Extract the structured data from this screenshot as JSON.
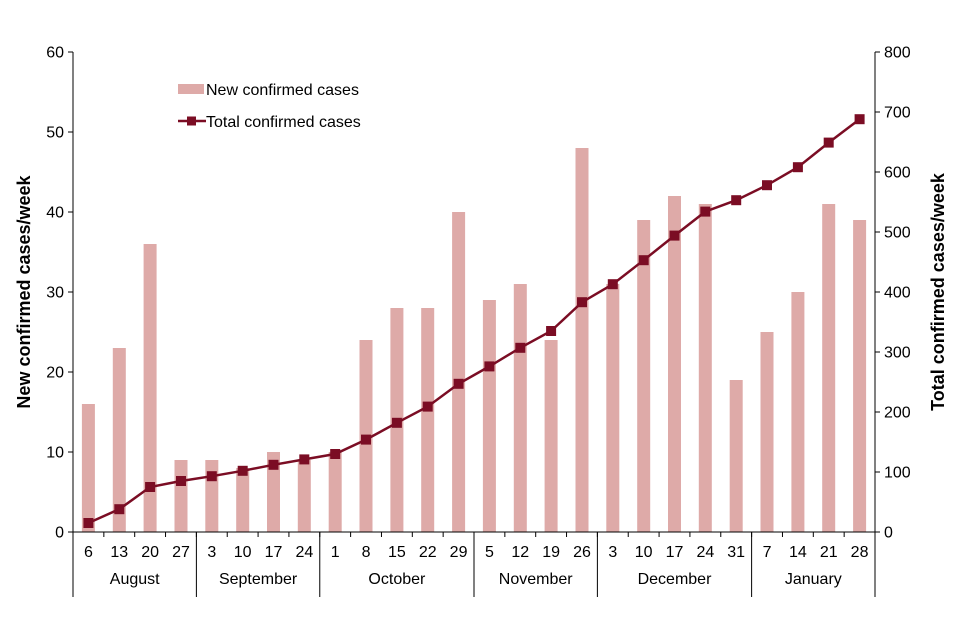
{
  "chart_data": {
    "type": "bar+line",
    "title": "",
    "x_dates": [
      "6",
      "13",
      "20",
      "27",
      "3",
      "10",
      "17",
      "24",
      "1",
      "8",
      "15",
      "22",
      "29",
      "5",
      "12",
      "19",
      "26",
      "3",
      "10",
      "17",
      "24",
      "31",
      "7",
      "14",
      "21",
      "28"
    ],
    "month_groups": [
      {
        "label": "August",
        "count": 4
      },
      {
        "label": "September",
        "count": 4
      },
      {
        "label": "October",
        "count": 5
      },
      {
        "label": "November",
        "count": 4
      },
      {
        "label": "December",
        "count": 5
      },
      {
        "label": "January",
        "count": 4
      }
    ],
    "series": [
      {
        "name": "New confirmed cases",
        "type": "bar",
        "axis": "left",
        "color": "#deaaa8",
        "values": [
          16,
          23,
          36,
          9,
          9,
          8,
          10,
          9,
          10,
          24,
          28,
          28,
          40,
          29,
          31,
          24,
          48,
          31,
          39,
          42,
          41,
          19,
          25,
          30,
          41,
          39
        ]
      },
      {
        "name": "Total confirmed cases",
        "type": "line",
        "axis": "right",
        "color": "#7b0d24",
        "values": [
          15,
          38,
          75,
          85,
          93,
          102,
          112,
          121,
          130,
          154,
          182,
          209,
          247,
          276,
          307,
          335,
          383,
          413,
          453,
          494,
          534,
          553,
          578,
          608,
          649,
          688
        ]
      }
    ],
    "y_left": {
      "label": "New confirmed cases/week",
      "min": 0,
      "max": 60,
      "ticks": [
        "0",
        "10",
        "20",
        "30",
        "40",
        "50",
        "60"
      ]
    },
    "y_right": {
      "label": "Total confirmed cases/week",
      "min": 0,
      "max": 800,
      "ticks": [
        "0",
        "100",
        "200",
        "300",
        "400",
        "500",
        "600",
        "700",
        "800"
      ]
    },
    "legend_position": "top-left"
  }
}
